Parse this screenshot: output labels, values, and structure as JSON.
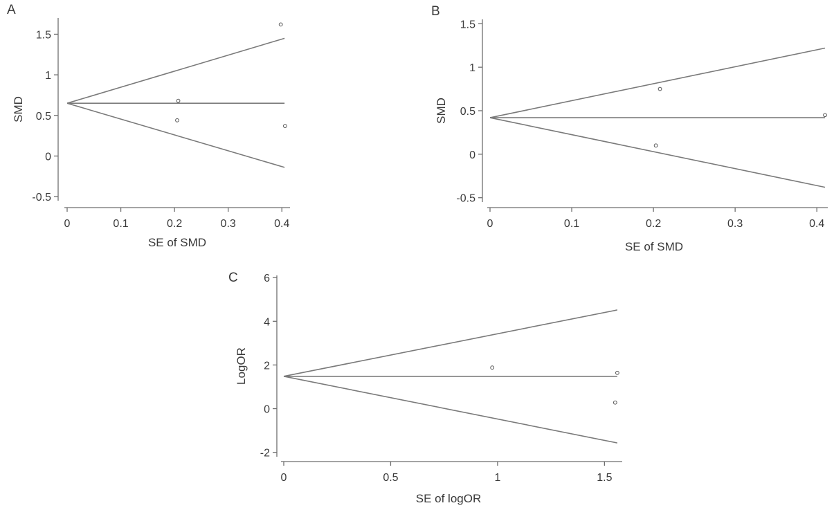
{
  "chart_data": [
    {
      "type": "scatter",
      "panel_label": "A",
      "xlabel": "SE of SMD",
      "ylabel": "SMD",
      "xlim": [
        0,
        0.41
      ],
      "ylim": [
        -0.55,
        1.7
      ],
      "x_ticks": [
        0,
        0.1,
        0.2,
        0.3,
        0.4
      ],
      "x_tick_labels": [
        "0",
        "0.1",
        "0.2",
        "0.3",
        "0.4"
      ],
      "y_ticks": [
        -0.5,
        0,
        0.5,
        1,
        1.5
      ],
      "y_tick_labels": [
        "-0.5",
        "0",
        "0.5",
        "1",
        "1.5"
      ],
      "pooled_estimate": 0.65,
      "funnel_se_max": 0.405,
      "funnel_upper_end": 1.45,
      "funnel_lower_end": -0.14,
      "points": [
        {
          "x": 0.398,
          "y": 1.62
        },
        {
          "x": 0.207,
          "y": 0.68
        },
        {
          "x": 0.205,
          "y": 0.44
        },
        {
          "x": 0.406,
          "y": 0.37
        }
      ]
    },
    {
      "type": "scatter",
      "panel_label": "B",
      "xlabel": "SE of SMD",
      "ylabel": "SMD",
      "xlim": [
        0,
        0.41
      ],
      "ylim": [
        -0.55,
        1.55
      ],
      "x_ticks": [
        0,
        0.1,
        0.2,
        0.3,
        0.4
      ],
      "x_tick_labels": [
        "0",
        "0.1",
        "0.2",
        "0.3",
        "0.4"
      ],
      "y_ticks": [
        -0.5,
        0,
        0.5,
        1,
        1.5
      ],
      "y_tick_labels": [
        "-0.5",
        "0",
        "0.5",
        "1",
        "1.5"
      ],
      "pooled_estimate": 0.42,
      "funnel_se_max": 0.41,
      "funnel_upper_end": 1.22,
      "funnel_lower_end": -0.38,
      "points": [
        {
          "x": 0.208,
          "y": 0.75
        },
        {
          "x": 0.203,
          "y": 0.1
        },
        {
          "x": 0.41,
          "y": 0.45
        }
      ]
    },
    {
      "type": "scatter",
      "panel_label": "C",
      "xlabel": "SE of logOR",
      "ylabel": "LogOR",
      "xlim": [
        0,
        1.57
      ],
      "ylim": [
        -2.2,
        6.1
      ],
      "x_ticks": [
        0,
        0.5,
        1,
        1.5
      ],
      "x_tick_labels": [
        "0",
        "0.5",
        "1",
        "1.5"
      ],
      "y_ticks": [
        -2,
        0,
        2,
        4,
        6
      ],
      "y_tick_labels": [
        "-2",
        "0",
        "2",
        "4",
        "6"
      ],
      "pooled_estimate": 1.48,
      "funnel_se_max": 1.56,
      "funnel_upper_end": 4.52,
      "funnel_lower_end": -1.57,
      "points": [
        {
          "x": 0.975,
          "y": 1.88
        },
        {
          "x": 1.56,
          "y": 1.64
        },
        {
          "x": 1.55,
          "y": 0.28
        }
      ]
    }
  ]
}
